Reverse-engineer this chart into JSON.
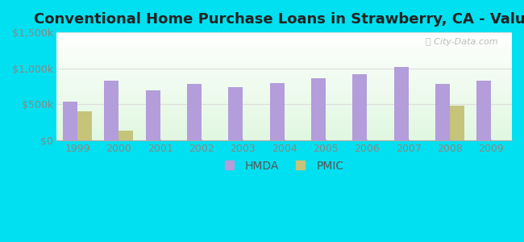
{
  "title": "Conventional Home Purchase Loans in Strawberry, CA - Value",
  "years": [
    1999,
    2000,
    2001,
    2002,
    2003,
    2004,
    2005,
    2006,
    2007,
    2008,
    2009
  ],
  "hmda": [
    540000,
    830000,
    690000,
    790000,
    740000,
    800000,
    860000,
    920000,
    1020000,
    790000,
    830000
  ],
  "pmic": [
    400000,
    140000,
    0,
    0,
    0,
    0,
    0,
    0,
    0,
    480000,
    0
  ],
  "hmda_color": "#b39ddb",
  "pmic_color": "#c5c47a",
  "bg_outer": "#00e0f0",
  "ylim": [
    0,
    1500000
  ],
  "yticks": [
    0,
    500000,
    1000000,
    1500000
  ],
  "ytick_labels": [
    "$0",
    "$500k",
    "$1,000k",
    "$1,500k"
  ],
  "bar_width": 0.35,
  "title_fontsize": 13,
  "legend_fontsize": 10,
  "tick_fontsize": 9,
  "tick_color": "#888888",
  "grid_color": "#dddddd",
  "title_color": "#222222"
}
